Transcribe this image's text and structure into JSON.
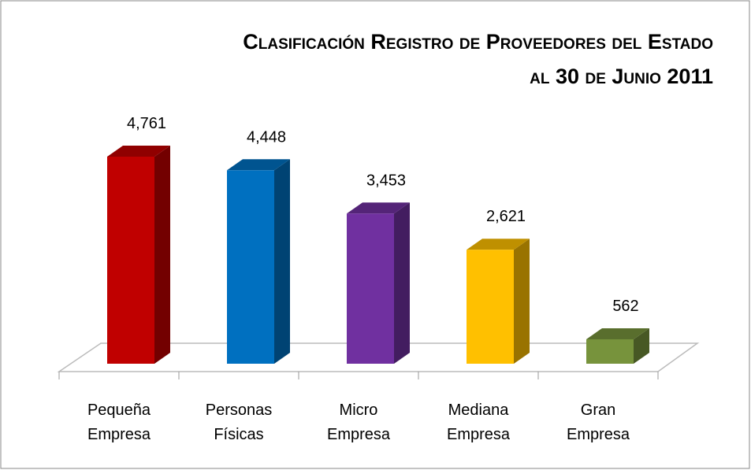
{
  "chart_data": {
    "type": "bar3d",
    "title": [
      "Clasificación Registro de Proveedores del Estado",
      "al 30 de Junio 2011"
    ],
    "categories": [
      "Pequeña Empresa",
      "Personas Físicas",
      "Micro Empresa",
      "Mediana Empresa",
      "Gran Empresa"
    ],
    "values": [
      4761,
      4448,
      3453,
      2621,
      562
    ],
    "value_labels": [
      "4,761",
      "4,448",
      "3,453",
      "2,621",
      "562"
    ],
    "colors": [
      "#c00000",
      "#0070c0",
      "#7030a0",
      "#ffc000",
      "#77933c"
    ]
  }
}
